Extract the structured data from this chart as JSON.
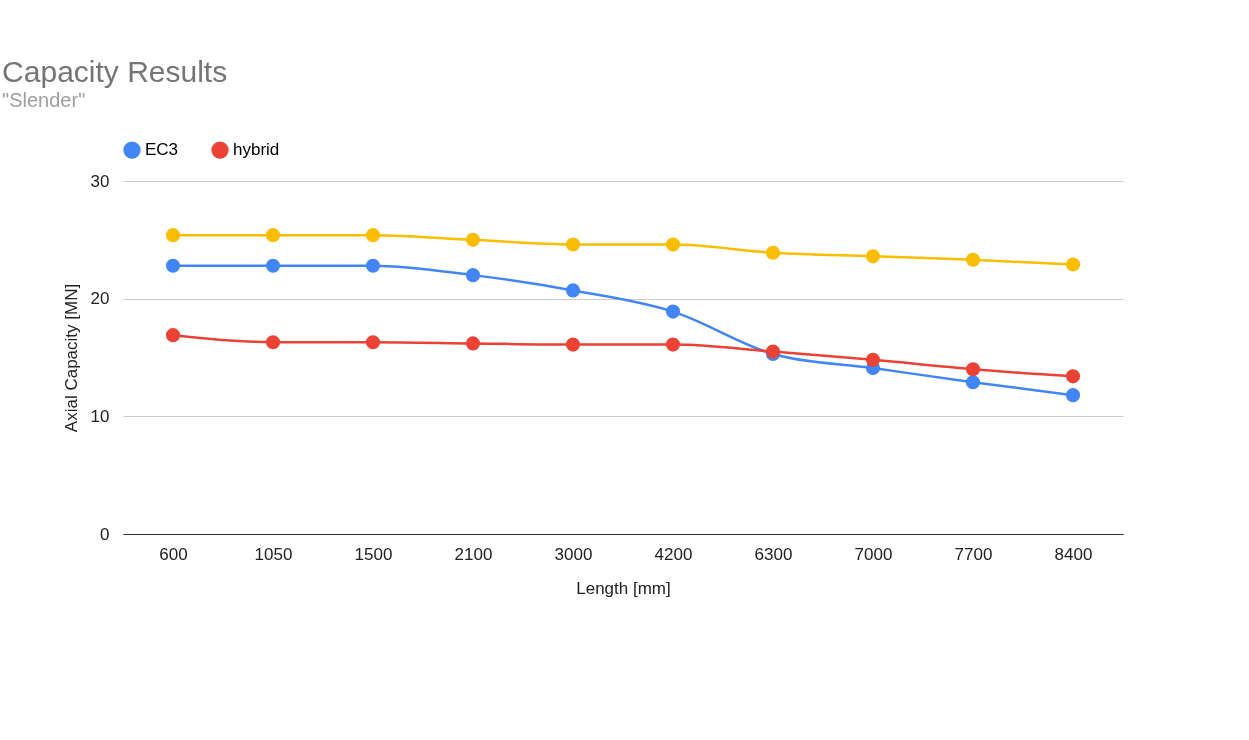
{
  "chart_data": {
    "type": "line",
    "title": "Capacity Results",
    "subtitle": "\"Slender\"",
    "xlabel": "Length [mm]",
    "ylabel": "Axial Capacity [MN]",
    "categories": [
      "600",
      "1050",
      "1500",
      "2100",
      "3000",
      "4200",
      "6300",
      "7000",
      "7700",
      "8400"
    ],
    "series": [
      {
        "name": "EC3",
        "color": "#4285f4",
        "values": [
          22.8,
          22.8,
          22.8,
          22.0,
          20.7,
          18.9,
          15.3,
          14.1,
          12.9,
          11.8
        ]
      },
      {
        "name": "hybrid",
        "color": "#ea4335",
        "values": [
          16.9,
          16.3,
          16.3,
          16.2,
          16.1,
          16.1,
          15.5,
          14.8,
          14.0,
          13.4
        ]
      },
      {
        "color": "#fbbc04",
        "values": [
          25.4,
          25.4,
          25.4,
          25.0,
          24.6,
          24.6,
          23.9,
          23.6,
          23.3,
          22.9
        ]
      }
    ],
    "ylim": [
      0,
      30
    ],
    "yticks": [
      0,
      10,
      20,
      30
    ],
    "grid": "y",
    "legend": "top",
    "marker": "circle",
    "line_style": "solid"
  }
}
